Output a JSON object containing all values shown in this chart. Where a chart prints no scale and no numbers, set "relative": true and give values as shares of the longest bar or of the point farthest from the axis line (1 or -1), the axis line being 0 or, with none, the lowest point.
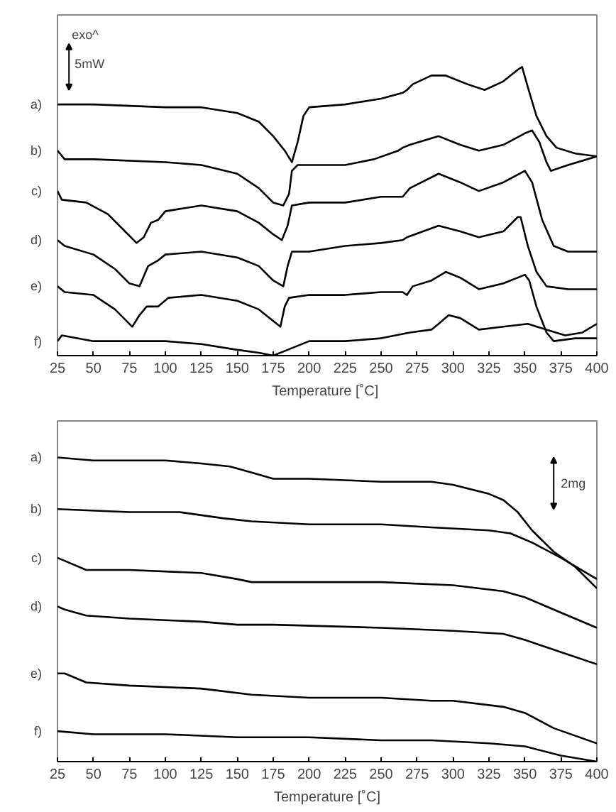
{
  "chart_data": [
    {
      "type": "line",
      "relative": true,
      "xlabel": "Temperature  [˚C]",
      "xlim": [
        25,
        400
      ],
      "xticks": [
        25,
        50,
        75,
        100,
        125,
        150,
        175,
        200,
        225,
        250,
        275,
        300,
        325,
        350,
        375,
        400
      ],
      "grid": false,
      "legend": false,
      "marker": "none",
      "line_style": "solid",
      "annotations": [
        "exo^",
        "5mW"
      ],
      "series": [
        {
          "name": "a)",
          "color": "#000000",
          "x": [
            25,
            50,
            100,
            125,
            150,
            165,
            175,
            183,
            188,
            192,
            196,
            200,
            225,
            250,
            265,
            268,
            272,
            285,
            295,
            310,
            322,
            335,
            345,
            348,
            352,
            358,
            365,
            372,
            385,
            400
          ],
          "values": [
            0.87,
            0.87,
            0.86,
            0.86,
            0.84,
            0.81,
            0.76,
            0.71,
            0.67,
            0.74,
            0.83,
            0.86,
            0.87,
            0.89,
            0.91,
            0.92,
            0.94,
            0.97,
            0.97,
            0.94,
            0.92,
            0.95,
            0.99,
            1.0,
            0.93,
            0.83,
            0.76,
            0.72,
            0.7,
            0.69
          ]
        },
        {
          "name": "b)",
          "color": "#000000",
          "x": [
            25,
            30,
            50,
            100,
            125,
            150,
            165,
            175,
            182,
            186,
            188,
            192,
            225,
            245,
            262,
            265,
            270,
            290,
            305,
            318,
            335,
            350,
            355,
            360,
            365,
            368,
            380,
            400
          ],
          "values": [
            0.71,
            0.68,
            0.68,
            0.67,
            0.66,
            0.63,
            0.58,
            0.53,
            0.52,
            0.56,
            0.64,
            0.66,
            0.66,
            0.68,
            0.71,
            0.72,
            0.73,
            0.76,
            0.73,
            0.71,
            0.73,
            0.77,
            0.78,
            0.74,
            0.67,
            0.64,
            0.66,
            0.69
          ]
        },
        {
          "name": "c)",
          "color": "#000000",
          "x": [
            25,
            28,
            45,
            60,
            70,
            80,
            85,
            90,
            95,
            100,
            125,
            150,
            165,
            175,
            181,
            185,
            188,
            200,
            225,
            250,
            265,
            270,
            290,
            305,
            318,
            335,
            350,
            355,
            362,
            370,
            380,
            400
          ],
          "values": [
            0.57,
            0.54,
            0.53,
            0.49,
            0.44,
            0.39,
            0.41,
            0.46,
            0.47,
            0.5,
            0.52,
            0.5,
            0.46,
            0.42,
            0.4,
            0.45,
            0.52,
            0.53,
            0.53,
            0.55,
            0.55,
            0.58,
            0.63,
            0.6,
            0.57,
            0.6,
            0.64,
            0.6,
            0.47,
            0.38,
            0.36,
            0.36
          ]
        },
        {
          "name": "d)",
          "color": "#000000",
          "x": [
            25,
            30,
            50,
            65,
            75,
            82,
            88,
            95,
            100,
            125,
            150,
            165,
            175,
            182,
            185,
            188,
            200,
            225,
            250,
            265,
            268,
            290,
            305,
            318,
            335,
            345,
            347,
            352,
            358,
            365,
            380,
            400
          ],
          "values": [
            0.4,
            0.38,
            0.35,
            0.3,
            0.25,
            0.24,
            0.31,
            0.33,
            0.35,
            0.36,
            0.34,
            0.31,
            0.26,
            0.24,
            0.31,
            0.36,
            0.36,
            0.38,
            0.39,
            0.4,
            0.41,
            0.45,
            0.43,
            0.41,
            0.43,
            0.48,
            0.48,
            0.38,
            0.29,
            0.24,
            0.23,
            0.23
          ]
        },
        {
          "name": "e)",
          "color": "#000000",
          "x": [
            25,
            30,
            50,
            65,
            77,
            82,
            87,
            95,
            102,
            125,
            150,
            165,
            175,
            180,
            183,
            186,
            200,
            225,
            250,
            265,
            268,
            272,
            285,
            295,
            305,
            318,
            335,
            350,
            353,
            358,
            365,
            370,
            385,
            400
          ],
          "values": [
            0.24,
            0.22,
            0.21,
            0.16,
            0.1,
            0.14,
            0.17,
            0.17,
            0.2,
            0.21,
            0.19,
            0.16,
            0.12,
            0.1,
            0.17,
            0.2,
            0.21,
            0.21,
            0.22,
            0.22,
            0.21,
            0.24,
            0.26,
            0.29,
            0.27,
            0.23,
            0.25,
            0.28,
            0.26,
            0.17,
            0.08,
            0.05,
            0.06,
            0.06
          ]
        },
        {
          "name": "f)",
          "color": "#000000",
          "x": [
            25,
            28,
            50,
            75,
            100,
            125,
            150,
            165,
            175,
            185,
            200,
            225,
            250,
            270,
            285,
            290,
            297,
            305,
            318,
            335,
            352,
            365,
            378,
            390,
            400
          ],
          "values": [
            0.05,
            0.07,
            0.05,
            0.05,
            0.05,
            0.04,
            0.02,
            0.01,
            0.0,
            0.02,
            0.05,
            0.05,
            0.06,
            0.08,
            0.09,
            0.11,
            0.14,
            0.13,
            0.09,
            0.1,
            0.11,
            0.09,
            0.07,
            0.08,
            0.11
          ]
        }
      ]
    },
    {
      "type": "line",
      "relative": true,
      "xlabel": "Temperature [˚C]",
      "xlim": [
        25,
        400
      ],
      "xticks": [
        25,
        50,
        75,
        100,
        125,
        150,
        175,
        200,
        225,
        250,
        275,
        300,
        325,
        350,
        375,
        400
      ],
      "grid": false,
      "legend": false,
      "marker": "none",
      "line_style": "solid",
      "annotations": [
        "2mg"
      ],
      "series": [
        {
          "name": "a)",
          "color": "#000000",
          "x": [
            25,
            50,
            100,
            125,
            145,
            160,
            175,
            200,
            250,
            285,
            300,
            325,
            335,
            345,
            355,
            370,
            385,
            400
          ],
          "values": [
            1.0,
            0.99,
            0.99,
            0.98,
            0.97,
            0.95,
            0.93,
            0.93,
            0.92,
            0.92,
            0.91,
            0.88,
            0.86,
            0.82,
            0.76,
            0.69,
            0.64,
            0.57
          ]
        },
        {
          "name": "b)",
          "color": "#000000",
          "x": [
            25,
            75,
            110,
            140,
            160,
            200,
            250,
            285,
            325,
            340,
            355,
            375,
            400
          ],
          "values": [
            0.83,
            0.82,
            0.82,
            0.8,
            0.79,
            0.78,
            0.78,
            0.77,
            0.76,
            0.75,
            0.72,
            0.67,
            0.6
          ]
        },
        {
          "name": "c)",
          "color": "#000000",
          "x": [
            25,
            30,
            45,
            75,
            125,
            150,
            160,
            200,
            250,
            300,
            335,
            350,
            365,
            400
          ],
          "values": [
            0.67,
            0.66,
            0.63,
            0.63,
            0.62,
            0.6,
            0.59,
            0.59,
            0.59,
            0.58,
            0.56,
            0.54,
            0.51,
            0.44
          ]
        },
        {
          "name": "d)",
          "color": "#000000",
          "x": [
            25,
            30,
            45,
            75,
            125,
            150,
            175,
            250,
            300,
            335,
            350,
            375,
            400
          ],
          "values": [
            0.51,
            0.5,
            0.48,
            0.47,
            0.46,
            0.45,
            0.45,
            0.44,
            0.43,
            0.42,
            0.4,
            0.36,
            0.32
          ]
        },
        {
          "name": "e)",
          "color": "#000000",
          "x": [
            25,
            30,
            45,
            75,
            125,
            160,
            200,
            250,
            285,
            300,
            335,
            350,
            370,
            400
          ],
          "values": [
            0.29,
            0.29,
            0.26,
            0.25,
            0.24,
            0.22,
            0.21,
            0.21,
            0.2,
            0.2,
            0.18,
            0.16,
            0.11,
            0.06
          ]
        },
        {
          "name": "f)",
          "color": "#000000",
          "x": [
            25,
            50,
            100,
            150,
            200,
            250,
            285,
            325,
            350,
            375,
            400
          ],
          "values": [
            0.1,
            0.09,
            0.09,
            0.08,
            0.08,
            0.07,
            0.07,
            0.06,
            0.05,
            0.02,
            0.0
          ]
        }
      ]
    }
  ]
}
